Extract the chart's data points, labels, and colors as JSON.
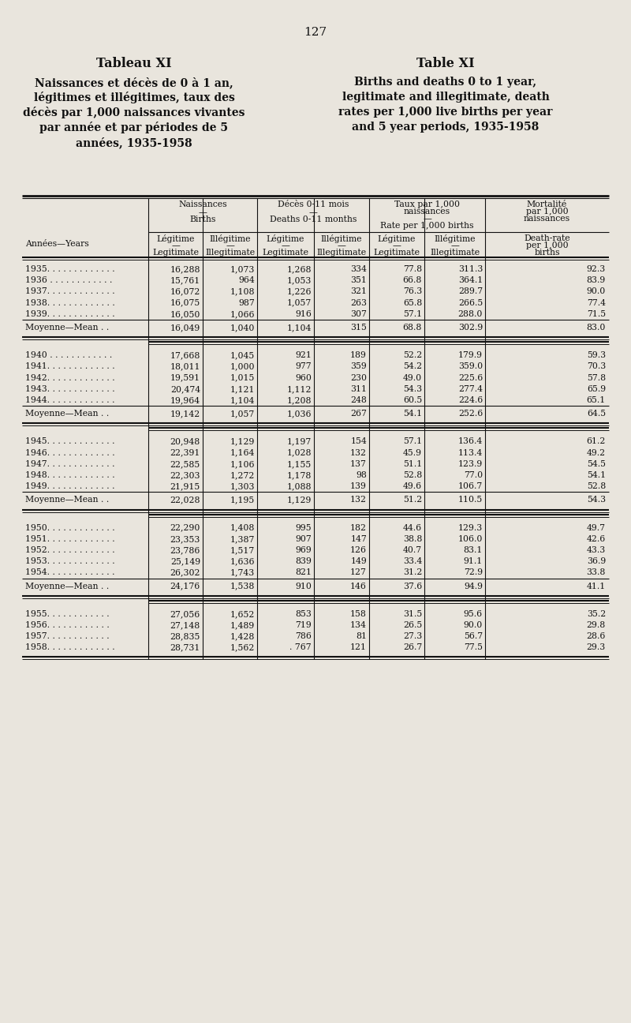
{
  "page_number": "127",
  "bg_color": "#e9e5dd",
  "text_color": "#111111",
  "title_left": [
    "Tableau XI",
    "Naissances et décès de 0 à 1 an,",
    "légitimes et illégitimes, taux des",
    "décès par 1,000 naissances vivantes",
    "par année et par périodes de 5",
    "années, 1935-1958"
  ],
  "title_right": [
    "Table XI",
    "Births and deaths 0 to 1 year,",
    "legitimate and illegitimate, death",
    "rates per 1,000 live births per year",
    "and 5 year periods, 1935-1958"
  ],
  "mean_label": "Moyenne—Mean . .",
  "rows": [
    [
      "1935. . . . . . . . . . . . .",
      "16,288",
      "1,073",
      "1,268",
      "334",
      "77.8",
      "311.3",
      "92.3"
    ],
    [
      "1936 . . . . . . . . . . . .",
      "15,761",
      "964",
      "1,053",
      "351",
      "66.8",
      "364.1",
      "83.9"
    ],
    [
      "1937. . . . . . . . . . . . .",
      "16,072",
      "1,108",
      "1,226",
      "321",
      "76.3",
      "289.7",
      "90.0"
    ],
    [
      "1938. . . . . . . . . . . . .",
      "16,075",
      "987",
      "1,057",
      "263",
      "65.8",
      "266.5",
      "77.4"
    ],
    [
      "1939. . . . . . . . . . . . .",
      "16,050",
      "1,066",
      "916",
      "307",
      "57.1",
      "288.0",
      "71.5"
    ],
    [
      "MEAN",
      "16,049",
      "1,040",
      "1,104",
      "315",
      "68.8",
      "302.9",
      "83.0"
    ],
    [
      "1940 . . . . . . . . . . . .",
      "17,668",
      "1,045",
      "921",
      "189",
      "52.2",
      "179.9",
      "59.3"
    ],
    [
      "1941. . . . . . . . . . . . .",
      "18,011",
      "1,000",
      "977",
      "359",
      "54.2",
      "359.0",
      "70.3"
    ],
    [
      "1942. . . . . . . . . . . . .",
      "19,591",
      "1,015",
      "960",
      "230",
      "49.0",
      "225.6",
      "57.8"
    ],
    [
      "1943. . . . . . . . . . . . .",
      "20,474",
      "1,121",
      "1,112",
      "311",
      "54.3",
      "277.4",
      "65.9"
    ],
    [
      "1944. . . . . . . . . . . . .",
      "19,964",
      "1,104",
      "1,208",
      "248",
      "60.5",
      "224.6",
      "65.1"
    ],
    [
      "MEAN",
      "19,142",
      "1,057",
      "1,036",
      "267",
      "54.1",
      "252.6",
      "64.5"
    ],
    [
      "1945. . . . . . . . . . . . .",
      "20,948",
      "1,129",
      "1,197",
      "154",
      "57.1",
      "136.4",
      "61.2"
    ],
    [
      "1946. . . . . . . . . . . . .",
      "22,391",
      "1,164",
      "1,028",
      "132",
      "45.9",
      "113.4",
      "49.2"
    ],
    [
      "1947. . . . . . . . . . . . .",
      "22,585",
      "1,106",
      "1,155",
      "137",
      "51.1",
      "123.9",
      "54.5"
    ],
    [
      "1948. . . . . . . . . . . . .",
      "22,303",
      "1,272",
      "1,178",
      "98",
      "52.8",
      "77.0",
      "54.1"
    ],
    [
      "1949. . . . . . . . . . . . .",
      "21,915",
      "1,303",
      "1,088",
      "139",
      "49.6",
      "106.7",
      "52.8"
    ],
    [
      "MEAN",
      "22,028",
      "1,195",
      "1,129",
      "132",
      "51.2",
      "110.5",
      "54.3"
    ],
    [
      "1950. . . . . . . . . . . . .",
      "22,290",
      "1,408",
      "995",
      "182",
      "44.6",
      "129.3",
      "49.7"
    ],
    [
      "1951. . . . . . . . . . . . .",
      "23,353",
      "1,387",
      "907",
      "147",
      "38.8",
      "106.0",
      "42.6"
    ],
    [
      "1952. . . . . . . . . . . . .",
      "23,786",
      "1,517",
      "969",
      "126",
      "40.7",
      "83.1",
      "43.3"
    ],
    [
      "1953. . . . . . . . . . . . .",
      "25,149",
      "1,636",
      "839",
      "149",
      "33.4",
      "91.1",
      "36.9"
    ],
    [
      "1954. . . . . . . . . . . . .",
      "26,302",
      "1,743",
      "821",
      "127",
      "31.2",
      "72.9",
      "33.8"
    ],
    [
      "MEAN",
      "24,176",
      "1,538",
      "910",
      "146",
      "37.6",
      "94.9",
      "41.1"
    ],
    [
      "1955. . . . . . . . . . . .",
      "27,056",
      "1,652",
      "853",
      "158",
      "31.5",
      "95.6",
      "35.2"
    ],
    [
      "1956. . . . . . . . . . . .",
      "27,148",
      "1,489",
      "719",
      "134",
      "26.5",
      "90.0",
      "29.8"
    ],
    [
      "1957. . . . . . . . . . . .",
      "28,835",
      "1,428",
      "786",
      "81",
      "27.3",
      "56.7",
      "28.6"
    ],
    [
      "1958. . . . . . . . . . . . .",
      "28,731",
      "1,562",
      ". 767",
      "121",
      "26.7",
      "77.5",
      "29.3"
    ]
  ]
}
